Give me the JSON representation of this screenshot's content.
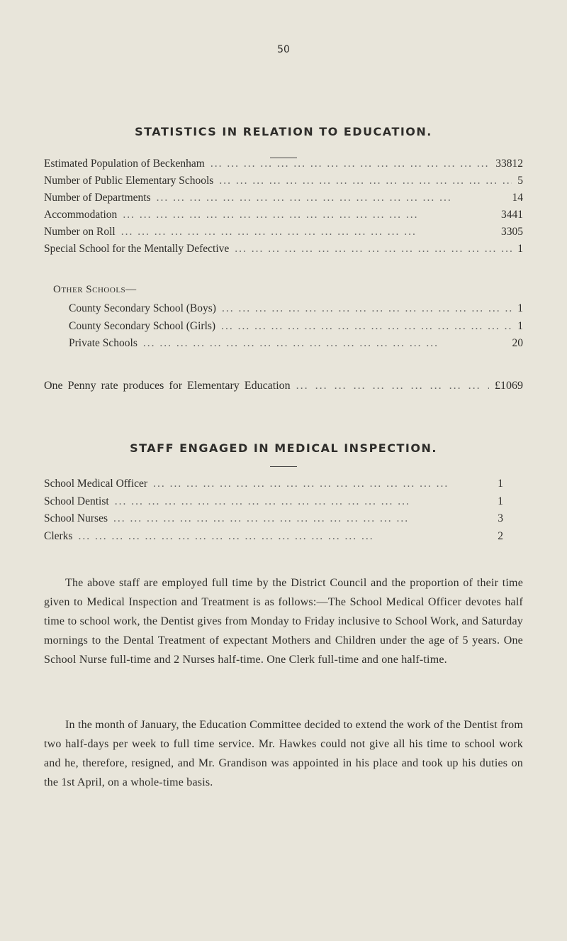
{
  "page_number": "50",
  "education": {
    "title": "STATISTICS IN RELATION TO EDUCATION.",
    "rows": [
      {
        "label": "Estimated Population of Beckenham",
        "value": "33812"
      },
      {
        "label": "Number of Public Elementary Schools",
        "value": "5"
      },
      {
        "label": "Number of Departments",
        "value": "14"
      },
      {
        "label": "Accommodation",
        "value": "3441"
      },
      {
        "label": "Number on Roll",
        "value": "3305"
      },
      {
        "label": "Special School for the Mentally Defective",
        "value": "1"
      }
    ],
    "other_heading": "Other Schools—",
    "other_rows": [
      {
        "label": "County Secondary School (Boys)",
        "value": "1"
      },
      {
        "label": "County Secondary School (Girls)",
        "value": "1"
      },
      {
        "label": "Private Schools",
        "value": "20"
      }
    ],
    "penny_rate": {
      "label": "One Penny rate produces for Elementary Education",
      "value": "£1069"
    }
  },
  "staff": {
    "title": "STAFF ENGAGED IN MEDICAL INSPECTION.",
    "rows": [
      {
        "label": "School Medical Officer",
        "value": "1"
      },
      {
        "label": "School Dentist",
        "value": "1"
      },
      {
        "label": "School Nurses",
        "value": "3"
      },
      {
        "label": "Clerks",
        "value": "2"
      }
    ]
  },
  "paragraphs": [
    "The above staff are employed full time by the District Council and the proportion of their time given to Medical Inspection and Treatment is as follows:—The School Medical Officer devotes half time to school work, the Dentist gives from Monday to Friday inclusive to School Work, and Saturday mornings to the Dental Treatment of expectant Mothers and Children under the age of 5 years. One School Nurse full-time and 2 Nurses half-time. One Clerk full-time and one half-time.",
    "In the month of January, the Education Committee decided to extend the work of the Dentist from two half-days per week to full time service. Mr. Hawkes could not give all his time to school work and he, therefore, resigned, and Mr. Grandison was appointed in his place and took up his duties on the 1st April, on a whole-time basis."
  ]
}
